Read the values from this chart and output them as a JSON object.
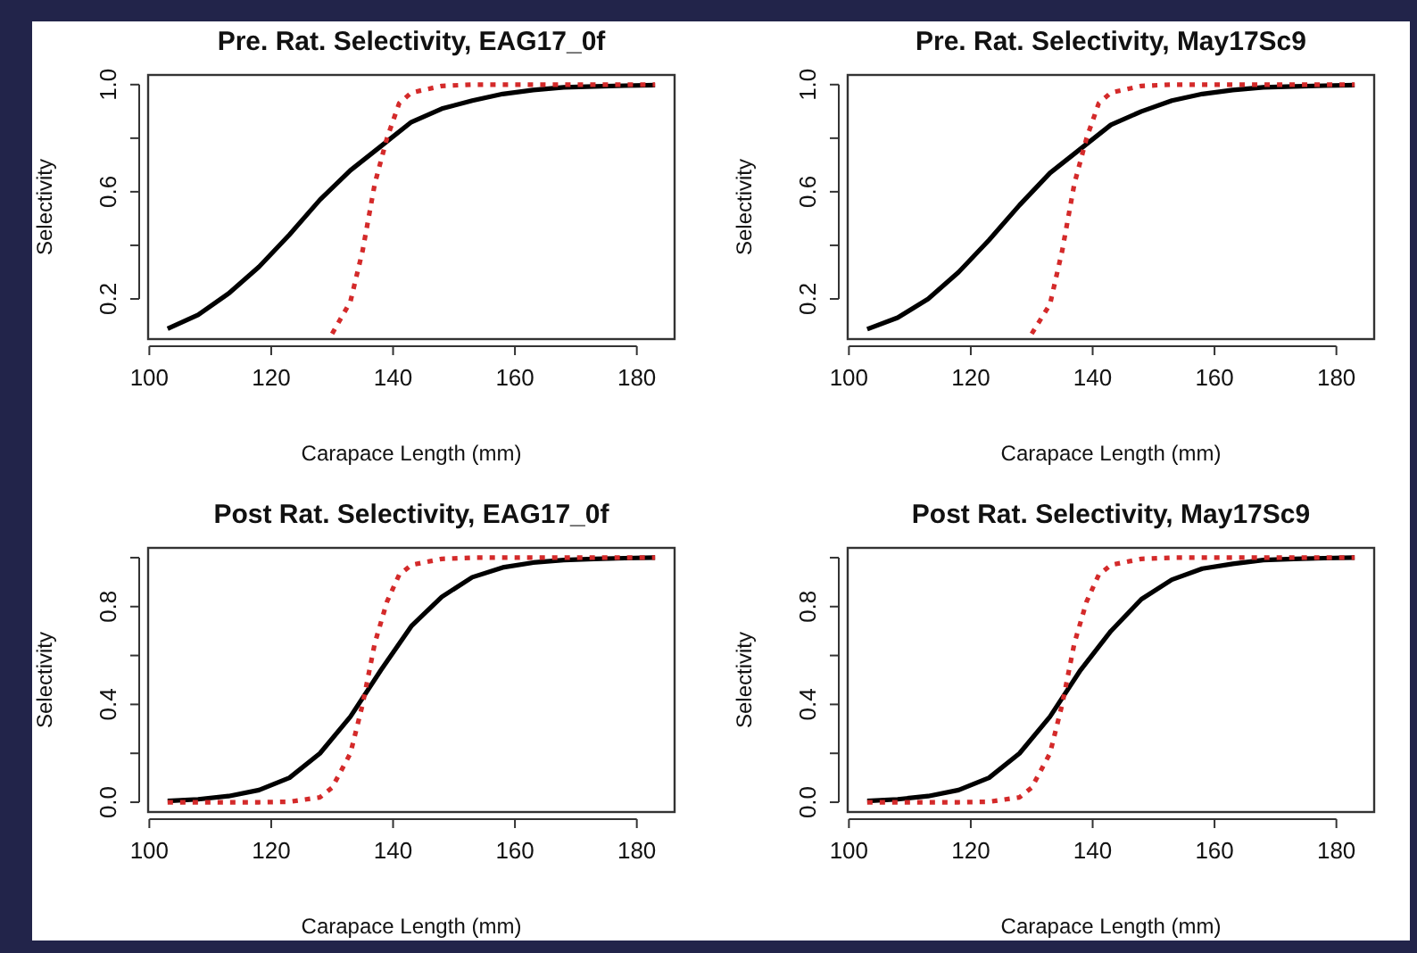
{
  "chart_data": [
    {
      "type": "line",
      "title": "Pre. Rat. Selectivity, EAG17_0f",
      "xlabel": "Carapace Length (mm)",
      "ylabel": "Selectivity",
      "xlim": [
        99.8,
        186.2
      ],
      "xticks": [
        100,
        120,
        140,
        160,
        180
      ],
      "ylim": [
        0.05,
        1.036
      ],
      "yticks": [
        {
          "value": 0.2,
          "label": "0.2"
        },
        {
          "value": 0.4,
          "label": null
        },
        {
          "value": 0.6,
          "label": "0.6"
        },
        {
          "value": 0.8,
          "label": null
        },
        {
          "value": 1.0,
          "label": "1.0"
        }
      ],
      "grid": false,
      "series": [
        {
          "color": "#000000",
          "line_style": "solid",
          "x": [
            103,
            108,
            113,
            118,
            123,
            128,
            133,
            138,
            143,
            148,
            153,
            158,
            163,
            168,
            173,
            178,
            183
          ],
          "values": [
            0.089,
            0.14,
            0.22,
            0.32,
            0.44,
            0.57,
            0.68,
            0.77,
            0.86,
            0.91,
            0.94,
            0.965,
            0.98,
            0.99,
            0.993,
            0.996,
            0.998
          ]
        },
        {
          "color": "#d42a2a",
          "line_style": "dotted",
          "x": [
            130,
            133,
            135,
            137,
            139,
            141,
            143,
            148,
            153,
            158,
            163,
            168,
            173,
            178,
            183
          ],
          "values": [
            0.07,
            0.19,
            0.38,
            0.63,
            0.8,
            0.93,
            0.97,
            0.995,
            1.0,
            1.0,
            1.0,
            1.0,
            1.0,
            1.0,
            1.0
          ]
        }
      ]
    },
    {
      "type": "line",
      "title": "Pre. Rat. Selectivity, May17Sc9",
      "xlabel": "Carapace Length (mm)",
      "ylabel": "Selectivity",
      "xlim": [
        99.8,
        186.2
      ],
      "xticks": [
        100,
        120,
        140,
        160,
        180
      ],
      "ylim": [
        0.05,
        1.036
      ],
      "yticks": [
        {
          "value": 0.2,
          "label": "0.2"
        },
        {
          "value": 0.4,
          "label": null
        },
        {
          "value": 0.6,
          "label": "0.6"
        },
        {
          "value": 0.8,
          "label": null
        },
        {
          "value": 1.0,
          "label": "1.0"
        }
      ],
      "grid": false,
      "series": [
        {
          "color": "#000000",
          "line_style": "solid",
          "x": [
            103,
            108,
            113,
            118,
            123,
            128,
            133,
            138,
            143,
            148,
            153,
            158,
            163,
            168,
            173,
            178,
            183
          ],
          "values": [
            0.087,
            0.13,
            0.2,
            0.3,
            0.42,
            0.55,
            0.67,
            0.76,
            0.85,
            0.9,
            0.94,
            0.965,
            0.98,
            0.99,
            0.993,
            0.996,
            0.998
          ]
        },
        {
          "color": "#d42a2a",
          "line_style": "dotted",
          "x": [
            130,
            133,
            135,
            137,
            139,
            141,
            143,
            148,
            153,
            158,
            163,
            168,
            173,
            178,
            183
          ],
          "values": [
            0.07,
            0.18,
            0.38,
            0.63,
            0.8,
            0.93,
            0.97,
            0.995,
            1.0,
            1.0,
            1.0,
            1.0,
            1.0,
            1.0,
            1.0
          ]
        }
      ]
    },
    {
      "type": "line",
      "title": "Post Rat. Selectivity, EAG17_0f",
      "xlabel": "Carapace Length (mm)",
      "ylabel": "Selectivity",
      "xlim": [
        99.8,
        186.2
      ],
      "xticks": [
        100,
        120,
        140,
        160,
        180
      ],
      "ylim": [
        -0.04,
        1.04
      ],
      "yticks": [
        {
          "value": 0.0,
          "label": "0.0"
        },
        {
          "value": 0.2,
          "label": null
        },
        {
          "value": 0.4,
          "label": "0.4"
        },
        {
          "value": 0.6,
          "label": null
        },
        {
          "value": 0.8,
          "label": "0.8"
        },
        {
          "value": 1.0,
          "label": null
        }
      ],
      "grid": false,
      "series": [
        {
          "color": "#000000",
          "line_style": "solid",
          "x": [
            103,
            108,
            113,
            118,
            123,
            128,
            133,
            138,
            143,
            148,
            153,
            158,
            163,
            168,
            173,
            178,
            183
          ],
          "values": [
            0.005,
            0.012,
            0.025,
            0.05,
            0.1,
            0.2,
            0.35,
            0.54,
            0.72,
            0.84,
            0.92,
            0.96,
            0.98,
            0.99,
            0.995,
            0.998,
            1.0
          ]
        },
        {
          "color": "#d42a2a",
          "line_style": "dotted",
          "x": [
            103,
            108,
            113,
            118,
            123,
            128,
            130,
            133,
            135,
            137,
            139,
            141,
            143,
            148,
            153,
            158,
            163,
            168,
            173,
            178,
            183
          ],
          "values": [
            0.0,
            0.0,
            0.0,
            0.0,
            0.002,
            0.02,
            0.06,
            0.2,
            0.4,
            0.65,
            0.82,
            0.93,
            0.97,
            0.995,
            1.0,
            1.0,
            1.0,
            1.0,
            1.0,
            1.0,
            1.0
          ]
        }
      ]
    },
    {
      "type": "line",
      "title": "Post Rat. Selectivity, May17Sc9",
      "xlabel": "Carapace Length (mm)",
      "ylabel": "Selectivity",
      "xlim": [
        99.8,
        186.2
      ],
      "xticks": [
        100,
        120,
        140,
        160,
        180
      ],
      "ylim": [
        -0.04,
        1.04
      ],
      "yticks": [
        {
          "value": 0.0,
          "label": "0.0"
        },
        {
          "value": 0.2,
          "label": null
        },
        {
          "value": 0.4,
          "label": "0.4"
        },
        {
          "value": 0.6,
          "label": null
        },
        {
          "value": 0.8,
          "label": "0.8"
        },
        {
          "value": 1.0,
          "label": null
        }
      ],
      "grid": false,
      "series": [
        {
          "color": "#000000",
          "line_style": "solid",
          "x": [
            103,
            108,
            113,
            118,
            123,
            128,
            133,
            138,
            143,
            148,
            153,
            158,
            163,
            168,
            173,
            178,
            183
          ],
          "values": [
            0.005,
            0.012,
            0.025,
            0.05,
            0.1,
            0.2,
            0.35,
            0.54,
            0.7,
            0.83,
            0.91,
            0.955,
            0.975,
            0.99,
            0.995,
            0.998,
            1.0
          ]
        },
        {
          "color": "#d42a2a",
          "line_style": "dotted",
          "x": [
            103,
            108,
            113,
            118,
            123,
            128,
            130,
            133,
            135,
            137,
            139,
            141,
            143,
            148,
            153,
            158,
            163,
            168,
            173,
            178,
            183
          ],
          "values": [
            0.0,
            0.0,
            0.0,
            0.0,
            0.002,
            0.02,
            0.06,
            0.2,
            0.4,
            0.65,
            0.82,
            0.93,
            0.97,
            0.995,
            1.0,
            1.0,
            1.0,
            1.0,
            1.0,
            1.0,
            1.0
          ]
        }
      ]
    }
  ]
}
